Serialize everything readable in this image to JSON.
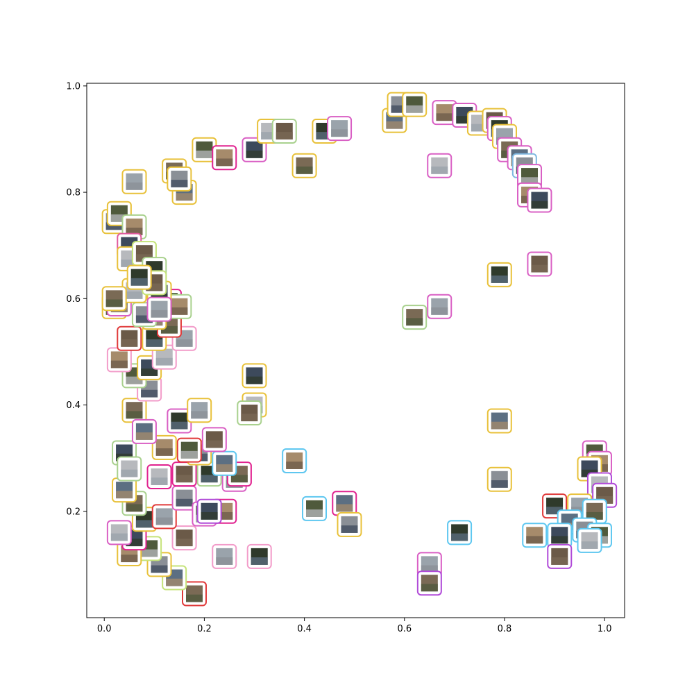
{
  "chart_data": {
    "type": "scatter",
    "title": "",
    "xlabel": "",
    "ylabel": "",
    "xlim": [
      -0.035,
      1.04
    ],
    "ylim": [
      0.0,
      1.005
    ],
    "grid": false,
    "legend": "none",
    "xticks": [
      0.0,
      0.2,
      0.4,
      0.6,
      0.8,
      1.0
    ],
    "yticks": [
      0.2,
      0.4,
      0.6,
      0.8,
      1.0
    ],
    "xtick_labels": [
      "0.0",
      "0.2",
      "0.4",
      "0.6",
      "0.8",
      "1.0"
    ],
    "ytick_labels": [
      "0.2",
      "0.4",
      "0.6",
      "0.8",
      "1.0"
    ],
    "marker": "image-thumbnail",
    "points": [
      {
        "x": 0.02,
        "y": 0.585,
        "color": "#E8C13A"
      },
      {
        "x": 0.03,
        "y": 0.59,
        "color": "#D95FC4"
      },
      {
        "x": 0.02,
        "y": 0.745,
        "color": "#E8C13A"
      },
      {
        "x": 0.03,
        "y": 0.76,
        "color": "#E8C13A"
      },
      {
        "x": 0.06,
        "y": 0.735,
        "color": "#A9D18E"
      },
      {
        "x": 0.05,
        "y": 0.7,
        "color": "#E05A9D"
      },
      {
        "x": 0.05,
        "y": 0.675,
        "color": "#E8C13A"
      },
      {
        "x": 0.08,
        "y": 0.685,
        "color": "#C5E37A"
      },
      {
        "x": 0.1,
        "y": 0.655,
        "color": "#A9D18E"
      },
      {
        "x": 0.06,
        "y": 0.82,
        "color": "#E8C13A"
      },
      {
        "x": 0.14,
        "y": 0.84,
        "color": "#E8C13A"
      },
      {
        "x": 0.16,
        "y": 0.8,
        "color": "#E8C13A"
      },
      {
        "x": 0.15,
        "y": 0.825,
        "color": "#E8C13A"
      },
      {
        "x": 0.2,
        "y": 0.88,
        "color": "#E8C13A"
      },
      {
        "x": 0.24,
        "y": 0.865,
        "color": "#E0228F"
      },
      {
        "x": 0.3,
        "y": 0.88,
        "color": "#D95FC4"
      },
      {
        "x": 0.33,
        "y": 0.915,
        "color": "#E8C13A"
      },
      {
        "x": 0.36,
        "y": 0.915,
        "color": "#A9D18E"
      },
      {
        "x": 0.44,
        "y": 0.915,
        "color": "#E8C13A"
      },
      {
        "x": 0.47,
        "y": 0.92,
        "color": "#D95FC4"
      },
      {
        "x": 0.4,
        "y": 0.85,
        "color": "#E8C13A"
      },
      {
        "x": 0.58,
        "y": 0.935,
        "color": "#E8C13A"
      },
      {
        "x": 0.59,
        "y": 0.965,
        "color": "#E8C13A"
      },
      {
        "x": 0.62,
        "y": 0.965,
        "color": "#E8C13A"
      },
      {
        "x": 0.68,
        "y": 0.95,
        "color": "#D95FC4"
      },
      {
        "x": 0.72,
        "y": 0.945,
        "color": "#D95FC4"
      },
      {
        "x": 0.75,
        "y": 0.93,
        "color": "#E8C13A"
      },
      {
        "x": 0.78,
        "y": 0.935,
        "color": "#E8C13A"
      },
      {
        "x": 0.79,
        "y": 0.92,
        "color": "#D95FC4"
      },
      {
        "x": 0.8,
        "y": 0.905,
        "color": "#E8C13A"
      },
      {
        "x": 0.81,
        "y": 0.88,
        "color": "#D95FC4"
      },
      {
        "x": 0.83,
        "y": 0.865,
        "color": "#D95FC4"
      },
      {
        "x": 0.84,
        "y": 0.85,
        "color": "#7EB8E0"
      },
      {
        "x": 0.85,
        "y": 0.83,
        "color": "#D95FC4"
      },
      {
        "x": 0.85,
        "y": 0.795,
        "color": "#D95FC4"
      },
      {
        "x": 0.87,
        "y": 0.785,
        "color": "#D95FC4"
      },
      {
        "x": 0.67,
        "y": 0.85,
        "color": "#D95FC4"
      },
      {
        "x": 0.87,
        "y": 0.665,
        "color": "#D95FC4"
      },
      {
        "x": 0.79,
        "y": 0.645,
        "color": "#E8C13A"
      },
      {
        "x": 0.67,
        "y": 0.585,
        "color": "#D95FC4"
      },
      {
        "x": 0.62,
        "y": 0.565,
        "color": "#A9D18E"
      },
      {
        "x": 0.79,
        "y": 0.37,
        "color": "#E8C13A"
      },
      {
        "x": 0.79,
        "y": 0.26,
        "color": "#E8C13A"
      },
      {
        "x": 0.98,
        "y": 0.31,
        "color": "#D95FC4"
      },
      {
        "x": 0.99,
        "y": 0.29,
        "color": "#D95FC4"
      },
      {
        "x": 0.97,
        "y": 0.28,
        "color": "#E8C13A"
      },
      {
        "x": 0.99,
        "y": 0.25,
        "color": "#B04AD8"
      },
      {
        "x": 1.0,
        "y": 0.23,
        "color": "#B04AD8"
      },
      {
        "x": 0.9,
        "y": 0.21,
        "color": "#E03A3A"
      },
      {
        "x": 0.95,
        "y": 0.21,
        "color": "#E8C13A"
      },
      {
        "x": 0.98,
        "y": 0.2,
        "color": "#5EC7F0"
      },
      {
        "x": 0.93,
        "y": 0.18,
        "color": "#5EC7F0"
      },
      {
        "x": 0.96,
        "y": 0.165,
        "color": "#5EC7F0"
      },
      {
        "x": 0.99,
        "y": 0.155,
        "color": "#5EC7F0"
      },
      {
        "x": 0.86,
        "y": 0.155,
        "color": "#5EC7F0"
      },
      {
        "x": 0.91,
        "y": 0.155,
        "color": "#5EC7F0"
      },
      {
        "x": 0.97,
        "y": 0.145,
        "color": "#5EC7F0"
      },
      {
        "x": 0.91,
        "y": 0.115,
        "color": "#B04AD8"
      },
      {
        "x": 0.71,
        "y": 0.16,
        "color": "#5EC7F0"
      },
      {
        "x": 0.65,
        "y": 0.1,
        "color": "#D95FC4"
      },
      {
        "x": 0.65,
        "y": 0.065,
        "color": "#B04AD8"
      },
      {
        "x": 0.48,
        "y": 0.215,
        "color": "#E0228F"
      },
      {
        "x": 0.49,
        "y": 0.175,
        "color": "#E8C13A"
      },
      {
        "x": 0.42,
        "y": 0.205,
        "color": "#5EC7F0"
      },
      {
        "x": 0.38,
        "y": 0.295,
        "color": "#5EC7F0"
      },
      {
        "x": 0.3,
        "y": 0.455,
        "color": "#E8C13A"
      },
      {
        "x": 0.3,
        "y": 0.4,
        "color": "#E8C13A"
      },
      {
        "x": 0.29,
        "y": 0.385,
        "color": "#A9D18E"
      },
      {
        "x": 0.31,
        "y": 0.115,
        "color": "#F29BC9"
      },
      {
        "x": 0.24,
        "y": 0.115,
        "color": "#F29BC9"
      },
      {
        "x": 0.18,
        "y": 0.045,
        "color": "#E03A3A"
      },
      {
        "x": 0.14,
        "y": 0.075,
        "color": "#C5E37A"
      },
      {
        "x": 0.11,
        "y": 0.1,
        "color": "#E8C13A"
      },
      {
        "x": 0.09,
        "y": 0.13,
        "color": "#C5E37A"
      },
      {
        "x": 0.05,
        "y": 0.12,
        "color": "#E8C13A"
      },
      {
        "x": 0.06,
        "y": 0.15,
        "color": "#E0228F"
      },
      {
        "x": 0.03,
        "y": 0.16,
        "color": "#D95FC4"
      },
      {
        "x": 0.16,
        "y": 0.15,
        "color": "#F29BC9"
      },
      {
        "x": 0.08,
        "y": 0.185,
        "color": "#E8C13A"
      },
      {
        "x": 0.12,
        "y": 0.19,
        "color": "#E03A3A"
      },
      {
        "x": 0.06,
        "y": 0.215,
        "color": "#A9D18E"
      },
      {
        "x": 0.04,
        "y": 0.24,
        "color": "#E8C13A"
      },
      {
        "x": 0.16,
        "y": 0.225,
        "color": "#D95FC4"
      },
      {
        "x": 0.2,
        "y": 0.195,
        "color": "#D95FC4"
      },
      {
        "x": 0.24,
        "y": 0.2,
        "color": "#E0228F"
      },
      {
        "x": 0.21,
        "y": 0.2,
        "color": "#B04AD8"
      },
      {
        "x": 0.11,
        "y": 0.265,
        "color": "#E0228F"
      },
      {
        "x": 0.16,
        "y": 0.27,
        "color": "#E0228F"
      },
      {
        "x": 0.21,
        "y": 0.27,
        "color": "#A9D18E"
      },
      {
        "x": 0.26,
        "y": 0.26,
        "color": "#D95FC4"
      },
      {
        "x": 0.27,
        "y": 0.27,
        "color": "#E0228F"
      },
      {
        "x": 0.24,
        "y": 0.29,
        "color": "#5EC7F0"
      },
      {
        "x": 0.19,
        "y": 0.31,
        "color": "#E8C13A"
      },
      {
        "x": 0.17,
        "y": 0.315,
        "color": "#E03A3A"
      },
      {
        "x": 0.12,
        "y": 0.32,
        "color": "#E8C13A"
      },
      {
        "x": 0.04,
        "y": 0.31,
        "color": "#A9D18E"
      },
      {
        "x": 0.05,
        "y": 0.28,
        "color": "#A9D18E"
      },
      {
        "x": 0.22,
        "y": 0.335,
        "color": "#D95FC4"
      },
      {
        "x": 0.15,
        "y": 0.37,
        "color": "#D95FC4"
      },
      {
        "x": 0.19,
        "y": 0.39,
        "color": "#E8C13A"
      },
      {
        "x": 0.06,
        "y": 0.39,
        "color": "#E8C13A"
      },
      {
        "x": 0.08,
        "y": 0.35,
        "color": "#D95FC4"
      },
      {
        "x": 0.09,
        "y": 0.43,
        "color": "#F29BC9"
      },
      {
        "x": 0.06,
        "y": 0.455,
        "color": "#A9D18E"
      },
      {
        "x": 0.03,
        "y": 0.485,
        "color": "#F29BC9"
      },
      {
        "x": 0.09,
        "y": 0.47,
        "color": "#E8C13A"
      },
      {
        "x": 0.12,
        "y": 0.49,
        "color": "#F29BC9"
      },
      {
        "x": 0.05,
        "y": 0.525,
        "color": "#E03A3A"
      },
      {
        "x": 0.1,
        "y": 0.525,
        "color": "#E8C13A"
      },
      {
        "x": 0.16,
        "y": 0.525,
        "color": "#F29BC9"
      },
      {
        "x": 0.13,
        "y": 0.55,
        "color": "#E03A3A"
      },
      {
        "x": 0.1,
        "y": 0.565,
        "color": "#E8C13A"
      },
      {
        "x": 0.08,
        "y": 0.57,
        "color": "#A9D18E"
      },
      {
        "x": 0.13,
        "y": 0.595,
        "color": "#E0228F"
      },
      {
        "x": 0.15,
        "y": 0.585,
        "color": "#A9D18E"
      },
      {
        "x": 0.11,
        "y": 0.61,
        "color": "#E8C13A"
      },
      {
        "x": 0.06,
        "y": 0.615,
        "color": "#E8C13A"
      },
      {
        "x": 0.1,
        "y": 0.63,
        "color": "#C5E37A"
      },
      {
        "x": 0.07,
        "y": 0.64,
        "color": "#E8C13A"
      },
      {
        "x": 0.11,
        "y": 0.58,
        "color": "#D95FC4"
      },
      {
        "x": 0.02,
        "y": 0.6,
        "color": "#E8C13A"
      }
    ]
  }
}
